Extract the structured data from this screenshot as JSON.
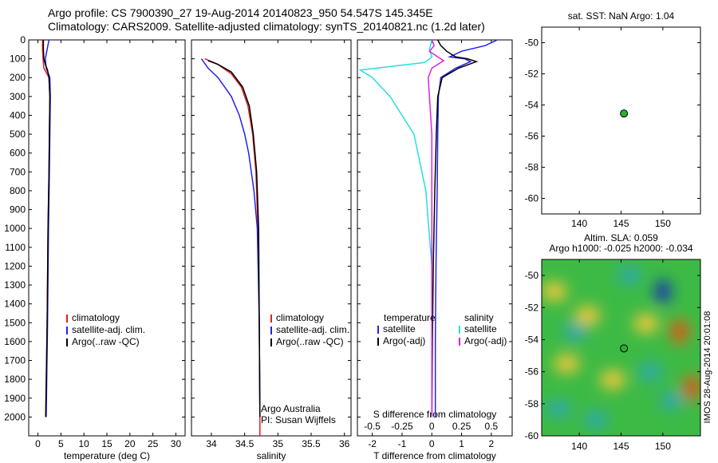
{
  "title_line1": "Argo profile: CS 7900390_27 19-Aug-2014 20140823_950 54.547S 145.345E",
  "title_line2": "Climatology: CARS2009. Satellite-adjusted climatology: synTS_20140821.nc (1.2d later)",
  "colors": {
    "climatology": "#e02020",
    "satellite": "#2222ee",
    "argo": "#000000",
    "sal_sat": "#22e0e0",
    "sal_argo": "#e020e0",
    "sst_marker": "#2cb02c"
  },
  "legend_profile": {
    "climatology": "climatology",
    "satellite": "satellite-adj. clim.",
    "argo": "Argo(..raw -QC)"
  },
  "legend_diff": {
    "temperature": "temperature",
    "salinity": "salinity",
    "satellite": "satellite",
    "argo": "Argo(-adj)"
  },
  "annotation": {
    "line1": "Argo Australia",
    "line2": "PI: Susan Wijffels"
  },
  "sst_title": "sat. SST: NaN Argo: 1.04",
  "sla_title1": "Altim. SLA: 0.059",
  "sla_title2": "Argo h1000: -0.025 h2000: -0.034",
  "side_label": "IMOS 28-Aug-2014 20:01:08",
  "chart_data": [
    {
      "type": "line",
      "xlabel": "temperature (deg C)",
      "ylabel": "",
      "xlim": [
        -2,
        32
      ],
      "ylim": [
        2100,
        0
      ],
      "xticks": [
        0,
        5,
        10,
        15,
        20,
        25,
        30
      ],
      "yticks": [
        0,
        100,
        200,
        300,
        400,
        500,
        600,
        700,
        800,
        900,
        1000,
        1100,
        1200,
        1300,
        1400,
        1500,
        1600,
        1700,
        1800,
        1900,
        2000
      ],
      "series": [
        {
          "name": "climatology",
          "depth": [
            0,
            50,
            100,
            150,
            200,
            300,
            500,
            700,
            1000,
            1500,
            2000
          ],
          "values": [
            1.0,
            1.0,
            1.1,
            1.3,
            2.4,
            2.6,
            2.5,
            2.4,
            2.2,
            2.0,
            1.7
          ]
        },
        {
          "name": "satellite-adj. clim.",
          "depth": [
            0,
            50,
            100,
            150,
            200,
            300,
            500,
            700,
            1000,
            1500,
            2000
          ],
          "values": [
            2.4,
            2.0,
            1.6,
            1.8,
            2.6,
            2.7,
            2.6,
            2.5,
            2.3,
            2.1,
            1.8
          ]
        },
        {
          "name": "Argo(..raw -QC)",
          "depth": [
            0,
            50,
            100,
            130,
            160,
            200,
            300,
            500,
            700,
            1000,
            1500,
            2000
          ],
          "values": [
            1.2,
            1.2,
            1.3,
            1.6,
            2.1,
            2.4,
            2.6,
            2.5,
            2.4,
            2.2,
            2.0,
            1.7
          ]
        }
      ]
    },
    {
      "type": "line",
      "xlabel": "salinity",
      "ylabel": "",
      "xlim": [
        33.7,
        36.1
      ],
      "ylim": [
        2100,
        0
      ],
      "xticks": [
        34,
        34.5,
        35,
        35.5,
        36
      ],
      "series": [
        {
          "name": "climatology",
          "depth": [
            100,
            130,
            180,
            250,
            350,
            500,
            700,
            1000,
            1500,
            2000,
            2100
          ],
          "values": [
            33.9,
            34.1,
            34.3,
            34.45,
            34.55,
            34.62,
            34.67,
            34.7,
            34.72,
            34.73,
            34.73
          ]
        },
        {
          "name": "satellite-adj. clim.",
          "depth": [
            100,
            150,
            200,
            300,
            400,
            500,
            600,
            800,
            1000,
            1500,
            2000
          ],
          "values": [
            33.85,
            33.95,
            34.1,
            34.3,
            34.42,
            34.5,
            34.56,
            34.64,
            34.69,
            34.72,
            34.73
          ]
        },
        {
          "name": "Argo(..raw -QC)",
          "depth": [
            110,
            130,
            170,
            250,
            350,
            500,
            700,
            1000,
            1500,
            2000
          ],
          "values": [
            33.95,
            34.1,
            34.3,
            34.47,
            34.57,
            34.63,
            34.68,
            34.71,
            34.72,
            34.73
          ]
        }
      ]
    },
    {
      "type": "line",
      "xlabel": "T difference from climatology",
      "x2label": "S difference from climatology",
      "xlim": [
        -2.5,
        2.7
      ],
      "x2lim": [
        -0.625,
        0.675
      ],
      "ylim": [
        2100,
        0
      ],
      "xticks": [
        -2,
        -1,
        0,
        1,
        2
      ],
      "x2ticks": [
        -0.5,
        -0.25,
        0,
        0.25,
        0.5
      ],
      "series": [
        {
          "name": "temperature satellite",
          "depth": [
            0,
            30,
            60,
            90,
            100,
            115,
            150,
            200,
            300,
            500,
            800,
            1200,
            1600,
            2000
          ],
          "values": [
            2.2,
            1.8,
            1.0,
            0.6,
            1.1,
            1.3,
            0.8,
            0.3,
            0.22,
            0.2,
            0.18,
            0.14,
            0.12,
            0.12
          ]
        },
        {
          "name": "temperature Argo(-adj)",
          "depth": [
            0,
            30,
            60,
            90,
            100,
            115,
            150,
            200,
            300,
            500,
            800,
            1200,
            1600,
            2000
          ],
          "values": [
            0.2,
            0.3,
            0.5,
            0.8,
            1.2,
            1.5,
            0.9,
            0.35,
            0.2,
            0.15,
            0.1,
            0.05,
            0.02,
            0.0
          ]
        },
        {
          "name": "salinity satellite",
          "depth": [
            0,
            50,
            90,
            120,
            160,
            200,
            300,
            500,
            800,
            1200,
            1600,
            2000
          ],
          "values": [
            0.0,
            -0.02,
            0.0,
            -0.06,
            -0.6,
            -0.5,
            -0.35,
            -0.15,
            -0.05,
            0.0,
            0.0,
            0.0
          ]
        },
        {
          "name": "salinity Argo(-adj)",
          "depth": [
            0,
            30,
            60,
            90,
            110,
            150,
            200,
            300,
            500,
            800,
            1200,
            1600,
            2000
          ],
          "values": [
            0.0,
            0.02,
            -0.02,
            0.05,
            0.1,
            0.0,
            -0.03,
            -0.02,
            0.0,
            0.0,
            0.0,
            0.0,
            0.0
          ]
        }
      ]
    },
    {
      "type": "scatter",
      "title": "sat. SST: NaN Argo: 1.04",
      "xlim": [
        135.5,
        154.5
      ],
      "ylim": [
        -61,
        -49
      ],
      "xticks": [
        140,
        145,
        150
      ],
      "yticks": [
        -50,
        -52,
        -54,
        -56,
        -58,
        -60
      ],
      "points": [
        {
          "x": 145.345,
          "y": -54.547
        }
      ]
    },
    {
      "type": "heatmap",
      "title": "Altim. SLA: 0.059 / Argo h1000: -0.025 h2000: -0.034",
      "xlim": [
        135.5,
        154.5
      ],
      "ylim": [
        -60,
        -49
      ],
      "xticks": [
        140,
        145,
        150
      ],
      "yticks": [
        -50,
        -52,
        -54,
        -56,
        -58,
        -60
      ],
      "points": [
        {
          "x": 145.345,
          "y": -54.547
        }
      ],
      "features": [
        {
          "x": 150.0,
          "y": -51.0,
          "kind": "low-strong"
        },
        {
          "x": 137.0,
          "y": -51.0,
          "kind": "high"
        },
        {
          "x": 141.0,
          "y": -52.5,
          "kind": "high"
        },
        {
          "x": 148.0,
          "y": -53.0,
          "kind": "high"
        },
        {
          "x": 152.0,
          "y": -53.5,
          "kind": "high-strong"
        },
        {
          "x": 138.5,
          "y": -55.5,
          "kind": "high"
        },
        {
          "x": 144.0,
          "y": -56.5,
          "kind": "high"
        },
        {
          "x": 153.5,
          "y": -57.0,
          "kind": "high-strong"
        },
        {
          "x": 146.0,
          "y": -50.0,
          "kind": "low"
        },
        {
          "x": 139.5,
          "y": -53.5,
          "kind": "low"
        },
        {
          "x": 151.0,
          "y": -57.8,
          "kind": "low"
        },
        {
          "x": 137.5,
          "y": -58.3,
          "kind": "low"
        },
        {
          "x": 142.0,
          "y": -59.0,
          "kind": "low"
        },
        {
          "x": 148.5,
          "y": -56.0,
          "kind": "low"
        }
      ]
    }
  ]
}
